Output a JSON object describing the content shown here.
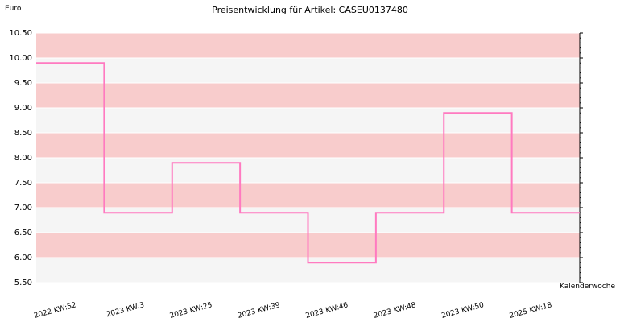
{
  "chart_data": {
    "type": "line",
    "title": "Preisentwicklung für Artikel: CASEU0137480",
    "ylabel": "Euro",
    "xlabel": "Kalenderwoche",
    "ylim": [
      5.5,
      10.5
    ],
    "yticks": [
      5.5,
      6.0,
      6.5,
      7.0,
      7.5,
      8.0,
      8.5,
      9.0,
      9.5,
      10.0,
      10.5
    ],
    "ytick_labels": [
      "5.50",
      "6.00",
      "6.50",
      "7.00",
      "7.50",
      "8.00",
      "8.50",
      "9.00",
      "9.50",
      "10.00",
      "10.50"
    ],
    "categories": [
      "2022 KW:52",
      "2023 KW:3",
      "2023 KW:25",
      "2023 KW:39",
      "2023 KW:46",
      "2023 KW:48",
      "2023 KW:50",
      "2025 KW:18"
    ],
    "series": [
      {
        "values": [
          9.9,
          6.9,
          7.9,
          6.9,
          5.9,
          6.9,
          8.9,
          6.9
        ]
      }
    ],
    "step": true,
    "grid": true,
    "band_colors": [
      "#f8cccc",
      "#f5f5f5"
    ],
    "line_color": "#ff7ac0"
  }
}
